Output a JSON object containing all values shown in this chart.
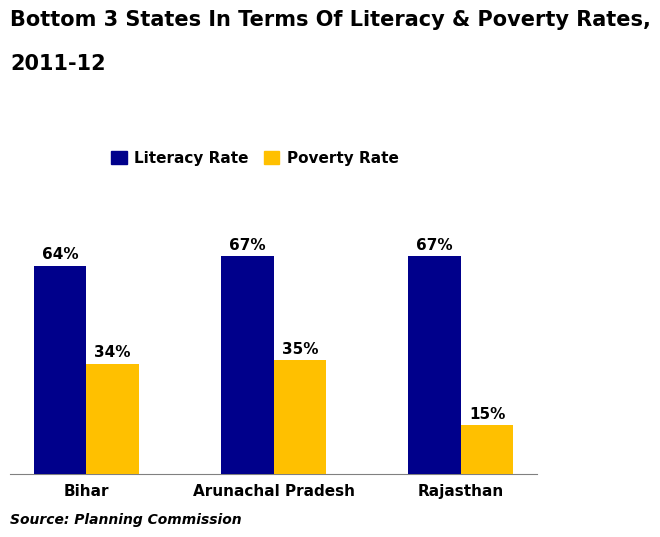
{
  "title_line1": "Bottom 3 States In Terms Of Literacy & Poverty Rates,",
  "title_line2": "2011-12",
  "categories": [
    "Bihar",
    "Arunachal Pradesh",
    "Rajasthan"
  ],
  "literacy_rates": [
    64,
    67,
    67
  ],
  "poverty_rates": [
    34,
    35,
    15
  ],
  "literacy_color": "#00008B",
  "poverty_color": "#FFC000",
  "bar_width": 0.28,
  "ylim": [
    0,
    85
  ],
  "source_text": "Source: Planning Commission",
  "legend_literacy": "Literacy Rate",
  "legend_poverty": "Poverty Rate",
  "title_fontsize": 15,
  "label_fontsize": 11,
  "tick_fontsize": 11,
  "source_fontsize": 10,
  "legend_fontsize": 11,
  "background_color": "#ffffff"
}
